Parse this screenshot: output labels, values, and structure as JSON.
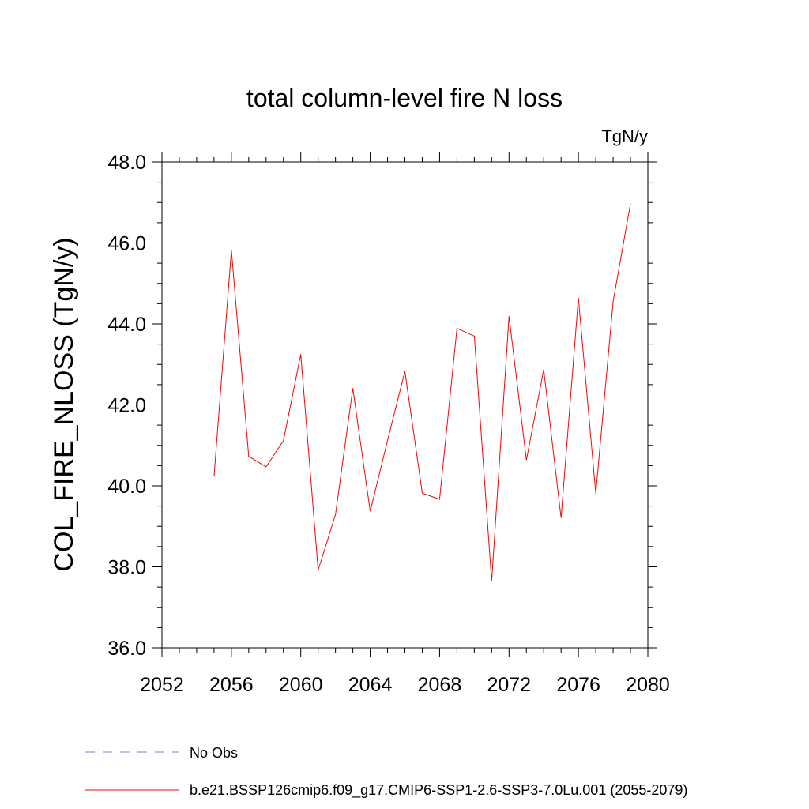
{
  "chart_data": {
    "type": "line",
    "title": "total column-level fire N loss",
    "units": "TgN/y",
    "xlabel": "",
    "ylabel": "COL_FIRE_NLOSS  (TgN/y)",
    "xlim": [
      2052,
      2080
    ],
    "ylim": [
      36.0,
      48.0
    ],
    "xticks": [
      2052,
      2056,
      2060,
      2064,
      2068,
      2072,
      2076,
      2080
    ],
    "xtick_labels": [
      "2052",
      "2056",
      "2060",
      "2064",
      "2068",
      "2072",
      "2076",
      "2080"
    ],
    "yticks": [
      36,
      38,
      40,
      42,
      44,
      46,
      48
    ],
    "ytick_labels": [
      "36.0",
      "38.0",
      "40.0",
      "42.0",
      "44.0",
      "46.0",
      "48.0"
    ],
    "grid": false,
    "legend_position": "bottom",
    "series": [
      {
        "name": "b.e21.BSSP126cmip6.f09_g17.CMIP6-SSP1-2.6-SSP3-7.0Lu.001 (2055-2079)",
        "color": "#ff0000",
        "style": "solid",
        "x": [
          2055,
          2056,
          2057,
          2058,
          2059,
          2060,
          2061,
          2062,
          2063,
          2064,
          2065,
          2066,
          2067,
          2068,
          2069,
          2070,
          2071,
          2072,
          2073,
          2074,
          2075,
          2076,
          2077,
          2078,
          2079
        ],
        "y": [
          40.23,
          45.82,
          40.73,
          40.47,
          41.12,
          43.25,
          37.92,
          39.29,
          42.41,
          39.37,
          41.12,
          42.83,
          39.82,
          39.67,
          43.89,
          43.7,
          37.64,
          44.19,
          40.64,
          42.87,
          39.21,
          44.64,
          39.81,
          44.56,
          46.97
        ]
      },
      {
        "name": "No Obs",
        "color": "#8080c0",
        "style": "dashed",
        "x": [],
        "y": []
      }
    ]
  }
}
